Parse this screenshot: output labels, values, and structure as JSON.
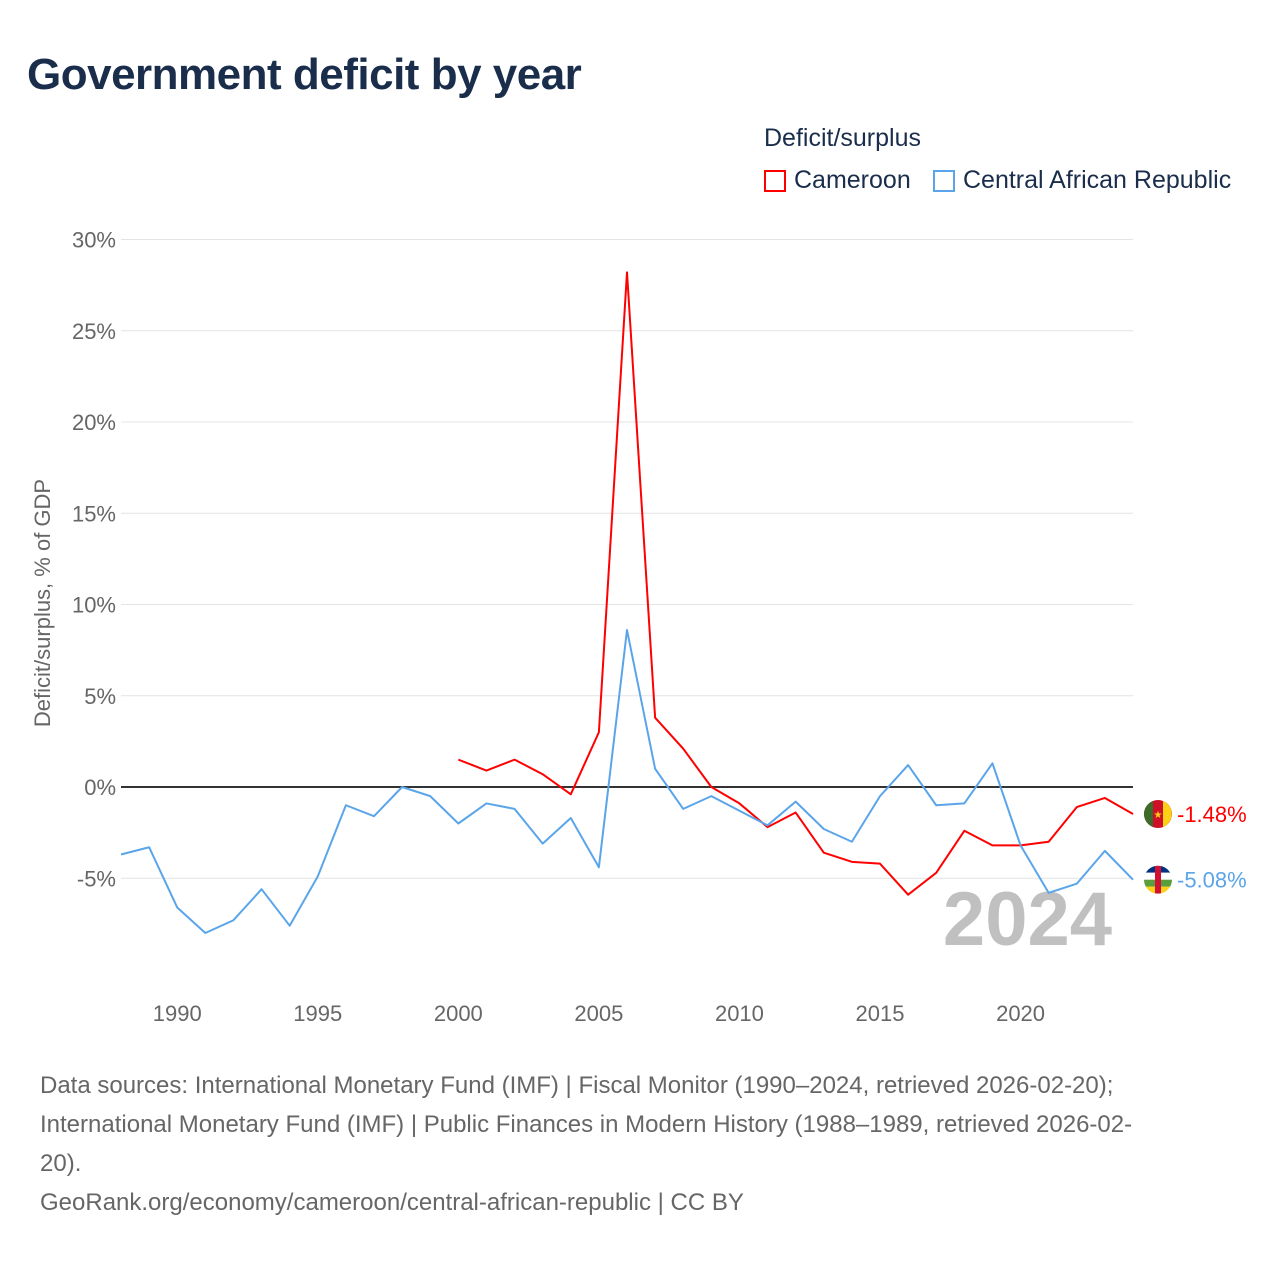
{
  "title": "Government deficit by year",
  "legend": {
    "title": "Deficit/surplus",
    "items": [
      {
        "name": "Cameroon",
        "color": "#ff0000"
      },
      {
        "name": "Central African Republic",
        "color": "#5aa5ea"
      }
    ]
  },
  "chart_data": {
    "type": "line",
    "title": "Government deficit by year",
    "xlabel": "",
    "ylabel": "Deficit/surplus, % of GDP",
    "xlim": [
      1988,
      2024
    ],
    "ylim": [
      -10,
      30
    ],
    "x_ticks": [
      1990,
      1995,
      2000,
      2005,
      2010,
      2015,
      2020
    ],
    "y_ticks": [
      -5,
      0,
      5,
      10,
      15,
      20,
      25,
      30
    ],
    "y_tick_labels": [
      "-5%",
      "0%",
      "5%",
      "10%",
      "15%",
      "20%",
      "25%",
      "30%"
    ],
    "grid": true,
    "legend_position": "top-right",
    "annotation": "2024",
    "series": [
      {
        "name": "Cameroon",
        "color": "#ff0000",
        "end_label": "-1.48%",
        "x": [
          2000,
          2001,
          2002,
          2003,
          2004,
          2005,
          2006,
          2007,
          2008,
          2009,
          2010,
          2011,
          2012,
          2013,
          2014,
          2015,
          2016,
          2017,
          2018,
          2019,
          2020,
          2021,
          2022,
          2023,
          2024
        ],
        "values": [
          1.5,
          0.9,
          1.5,
          0.7,
          -0.4,
          3.0,
          28.2,
          3.8,
          2.1,
          0.0,
          -0.9,
          -2.2,
          -1.4,
          -3.6,
          -4.1,
          -4.2,
          -5.9,
          -4.7,
          -2.4,
          -3.2,
          -3.2,
          -3.0,
          -1.1,
          -0.6,
          -1.48
        ]
      },
      {
        "name": "Central African Republic",
        "color": "#5aa5ea",
        "end_label": "-5.08%",
        "x": [
          1988,
          1989,
          1990,
          1991,
          1992,
          1993,
          1994,
          1995,
          1996,
          1997,
          1998,
          1999,
          2000,
          2001,
          2002,
          2003,
          2004,
          2005,
          2006,
          2007,
          2008,
          2009,
          2010,
          2011,
          2012,
          2013,
          2014,
          2015,
          2016,
          2017,
          2018,
          2019,
          2020,
          2021,
          2022,
          2023,
          2024
        ],
        "values": [
          -3.7,
          -3.3,
          -6.6,
          -8.0,
          -7.3,
          -5.6,
          -7.6,
          -4.9,
          -1.0,
          -1.6,
          0.0,
          -0.5,
          -2.0,
          -0.9,
          -1.2,
          -3.1,
          -1.7,
          -4.4,
          8.6,
          1.0,
          -1.2,
          -0.5,
          -1.3,
          -2.1,
          -0.8,
          -2.3,
          -3.0,
          -0.5,
          1.2,
          -1.0,
          -0.9,
          1.3,
          -3.2,
          -5.8,
          -5.3,
          -3.5,
          -5.08
        ]
      }
    ]
  },
  "footer": {
    "sources_line1": "Data sources: International Monetary Fund (IMF) | Fiscal Monitor (1990–2024, retrieved 2026-02-20);",
    "sources_line2": "International Monetary Fund (IMF) | Public Finances in Modern History (1988–1989, retrieved 2026-02-",
    "sources_line3": "20).",
    "attribution": "GeoRank.org/economy/cameroon/central-african-republic | CC BY"
  }
}
